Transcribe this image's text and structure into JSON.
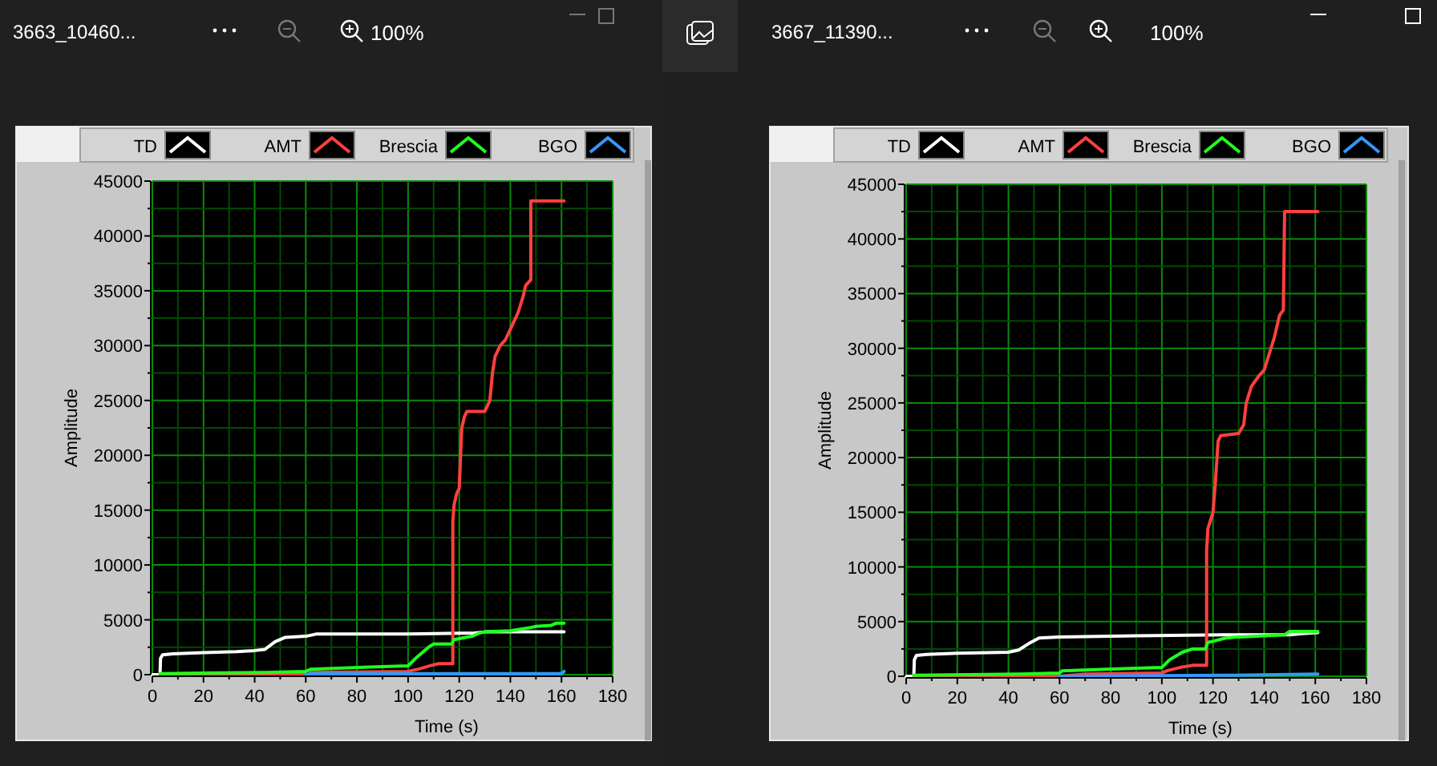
{
  "chart_data": [
    {
      "type": "line",
      "title": "3663_10460...",
      "annotations": [
        "100%"
      ],
      "xlabel": "Time (s)",
      "ylabel": "Amplitude",
      "xlim": [
        0,
        180
      ],
      "xticks": [
        0,
        {
          "value": 10,
          "label": null
        },
        20,
        {
          "value": 30,
          "label": null
        },
        40,
        {
          "value": 50,
          "label": null
        },
        60,
        {
          "value": 70,
          "label": null
        },
        80,
        {
          "value": 90,
          "label": null
        },
        100,
        {
          "value": 110,
          "label": null
        },
        120,
        {
          "value": 130,
          "label": null
        },
        140,
        {
          "value": 150,
          "label": null
        },
        160,
        {
          "value": 170,
          "label": null
        },
        180
      ],
      "ylim": [
        0,
        45000
      ],
      "yticks": [
        0,
        {
          "value": 2500,
          "label": null
        },
        5000,
        {
          "value": 7500,
          "label": null
        },
        10000,
        {
          "value": 12500,
          "label": null
        },
        15000,
        {
          "value": 17500,
          "label": null
        },
        20000,
        {
          "value": 22500,
          "label": null
        },
        25000,
        {
          "value": 27500,
          "label": null
        },
        30000,
        {
          "value": 32500,
          "label": null
        },
        35000,
        {
          "value": 37500,
          "label": null
        },
        40000,
        {
          "value": 42500,
          "label": null
        },
        45000
      ],
      "grid": true,
      "legend": "top",
      "series": [
        {
          "name": "TD",
          "color": "#ffffff",
          "x": [
            0,
            3,
            3.2,
            4,
            8,
            20,
            33,
            40,
            44,
            48,
            52,
            60,
            64,
            100,
            126,
            130,
            161
          ],
          "values": [
            0,
            0,
            1500,
            1800,
            1900,
            2000,
            2100,
            2200,
            2300,
            3000,
            3400,
            3500,
            3700,
            3700,
            3800,
            3900,
            3900
          ]
        },
        {
          "name": "AMT",
          "color": "#ff4040",
          "x": [
            3,
            61,
            62,
            100,
            104,
            110,
            112,
            117.5,
            117.5,
            118,
            119,
            120,
            121,
            122,
            123,
            130,
            132,
            133,
            134,
            136,
            138,
            140,
            143,
            145,
            146,
            148,
            148,
            161
          ],
          "values": [
            0,
            0,
            200,
            300,
            500,
            900,
            1000,
            1000,
            14000,
            15500,
            16500,
            17000,
            22500,
            23500,
            24000,
            24000,
            25000,
            27500,
            29000,
            30000,
            30500,
            31500,
            33000,
            34500,
            35500,
            36000,
            43200,
            43200
          ]
        },
        {
          "name": "Brescia",
          "color": "#1eff1e",
          "x": [
            3,
            45,
            60,
            62,
            85,
            100,
            103,
            108,
            110,
            117,
            118,
            125,
            128,
            130,
            140,
            148,
            150,
            156,
            158,
            161
          ],
          "values": [
            100,
            200,
            300,
            500,
            700,
            800,
            1500,
            2500,
            2800,
            2800,
            3200,
            3500,
            3800,
            3900,
            4000,
            4300,
            4400,
            4500,
            4700,
            4700
          ]
        },
        {
          "name": "BGO",
          "color": "#3399ff",
          "x": [
            60,
            62,
            160,
            161
          ],
          "values": [
            0,
            100,
            100,
            300
          ]
        }
      ]
    },
    {
      "type": "line",
      "title": "3667_11390...",
      "annotations": [
        "100%"
      ],
      "xlabel": "Time (s)",
      "ylabel": "Amplitude",
      "xlim": [
        0,
        180
      ],
      "xticks": [
        0,
        {
          "value": 10,
          "label": null
        },
        20,
        {
          "value": 30,
          "label": null
        },
        40,
        {
          "value": 50,
          "label": null
        },
        60,
        {
          "value": 70,
          "label": null
        },
        80,
        {
          "value": 90,
          "label": null
        },
        100,
        {
          "value": 110,
          "label": null
        },
        120,
        {
          "value": 130,
          "label": null
        },
        140,
        {
          "value": 150,
          "label": null
        },
        160,
        {
          "value": 170,
          "label": null
        },
        180
      ],
      "ylim": [
        0,
        45000
      ],
      "yticks": [
        0,
        {
          "value": 2500,
          "label": null
        },
        5000,
        {
          "value": 7500,
          "label": null
        },
        10000,
        {
          "value": 12500,
          "label": null
        },
        15000,
        {
          "value": 17500,
          "label": null
        },
        20000,
        {
          "value": 22500,
          "label": null
        },
        25000,
        {
          "value": 27500,
          "label": null
        },
        30000,
        {
          "value": 32500,
          "label": null
        },
        35000,
        {
          "value": 37500,
          "label": null
        },
        40000,
        {
          "value": 42500,
          "label": null
        },
        45000
      ],
      "grid": true,
      "legend": "top",
      "series": [
        {
          "name": "TD",
          "color": "#ffffff",
          "x": [
            0,
            3,
            3.2,
            4,
            8,
            20,
            40,
            44,
            48,
            52,
            60,
            90,
            126,
            150,
            155,
            161
          ],
          "values": [
            0,
            0,
            1500,
            1900,
            2000,
            2100,
            2200,
            2400,
            3000,
            3500,
            3600,
            3700,
            3800,
            3800,
            3900,
            4000
          ]
        },
        {
          "name": "AMT",
          "color": "#ff4040",
          "x": [
            3,
            60,
            70,
            100,
            102,
            107,
            112,
            117.5,
            117.5,
            118,
            120,
            121,
            122,
            123,
            130,
            132,
            133,
            135,
            138,
            140,
            142,
            144,
            146,
            147.5,
            148,
            161
          ],
          "values": [
            0,
            0,
            200,
            300,
            500,
            800,
            1000,
            1000,
            11500,
            13500,
            15000,
            18000,
            21500,
            22000,
            22200,
            23000,
            25000,
            26500,
            27500,
            28000,
            29500,
            31000,
            33000,
            33500,
            42500,
            42500
          ]
        },
        {
          "name": "Brescia",
          "color": "#1eff1e",
          "x": [
            3,
            45,
            60,
            61,
            85,
            100,
            103,
            108,
            112,
            117,
            118,
            120,
            125,
            130,
            140,
            148,
            150,
            161
          ],
          "values": [
            100,
            200,
            300,
            500,
            700,
            800,
            1500,
            2200,
            2500,
            2500,
            3100,
            3200,
            3500,
            3600,
            3700,
            3800,
            4100,
            4100
          ]
        },
        {
          "name": "BGO",
          "color": "#3399ff",
          "x": [
            60,
            62,
            128,
            161
          ],
          "values": [
            0,
            0,
            100,
            200
          ]
        }
      ]
    }
  ]
}
